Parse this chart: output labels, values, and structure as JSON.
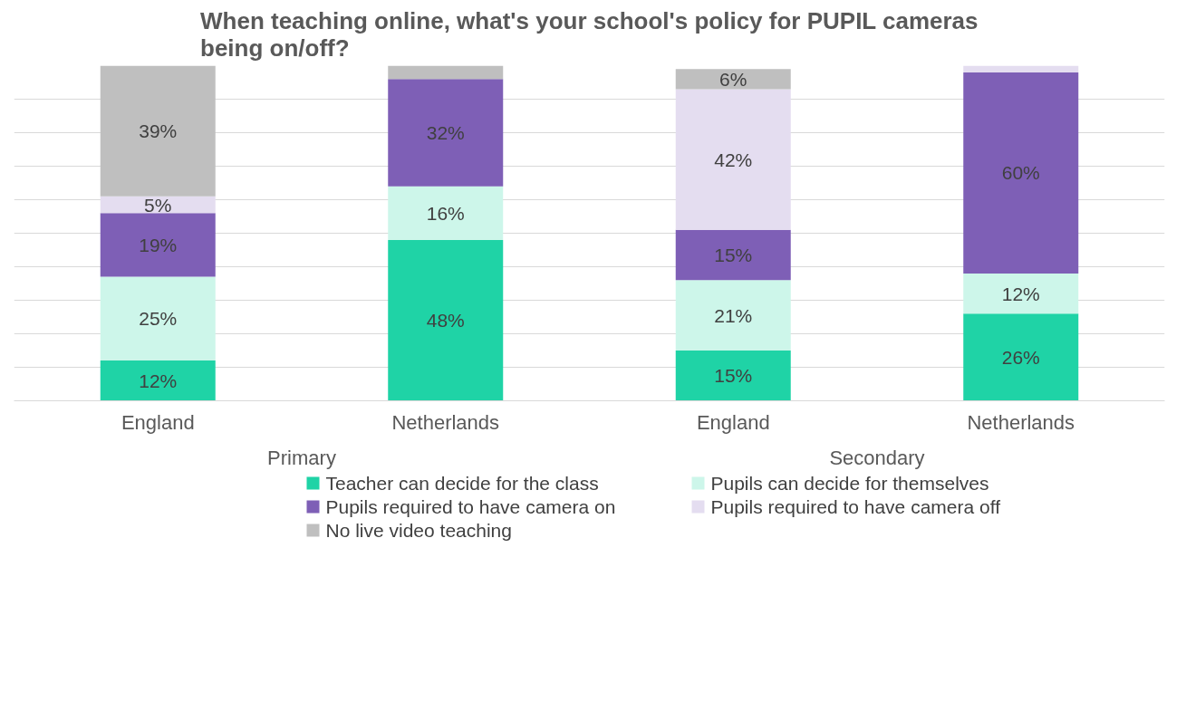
{
  "chart_data": {
    "type": "bar",
    "stacked": true,
    "title": "When teaching online, what's your school's policy for PUPIL cameras being on/off?",
    "categories": [
      "England",
      "Netherlands",
      "England",
      "Netherlands"
    ],
    "annotations": [
      "Primary",
      "Secondary"
    ],
    "series": [
      {
        "name": "Teacher can decide for the class",
        "color": "#1fd3a6",
        "values": [
          12,
          48,
          15,
          26
        ],
        "value_labels": [
          "12%",
          "48%",
          "15%",
          "26%"
        ]
      },
      {
        "name": "Pupils can decide for themselves",
        "color": "#cdf6ea",
        "values": [
          25,
          16,
          21,
          12
        ],
        "value_labels": [
          "25%",
          "16%",
          "21%",
          "12%"
        ]
      },
      {
        "name": "Pupils required to have camera on",
        "color": "#7e5fb6",
        "values": [
          19,
          32,
          15,
          60
        ],
        "value_labels": [
          "19%",
          "32%",
          "15%",
          "60%"
        ]
      },
      {
        "name": "Pupils required to have camera off",
        "color": "#e4ddf0",
        "values": [
          5,
          0,
          42,
          2
        ],
        "value_labels": [
          "5%",
          null,
          "42%",
          null
        ]
      },
      {
        "name": "No live video teaching",
        "color": "#bfbfbf",
        "values": [
          39,
          4,
          6,
          0
        ],
        "value_labels": [
          "39%",
          null,
          "6%",
          null
        ]
      }
    ],
    "ylim": [
      0,
      100
    ],
    "yticks": [
      {
        "value": 0,
        "label": null
      },
      {
        "value": 10,
        "label": null
      },
      {
        "value": 20,
        "label": null
      },
      {
        "value": 30,
        "label": null
      },
      {
        "value": 40,
        "label": null
      },
      {
        "value": 50,
        "label": null
      },
      {
        "value": 60,
        "label": null
      },
      {
        "value": 70,
        "label": null
      },
      {
        "value": 80,
        "label": null
      },
      {
        "value": 90,
        "label": null
      }
    ],
    "tick_labels": "x",
    "grid": "y",
    "legend": "bottom"
  }
}
